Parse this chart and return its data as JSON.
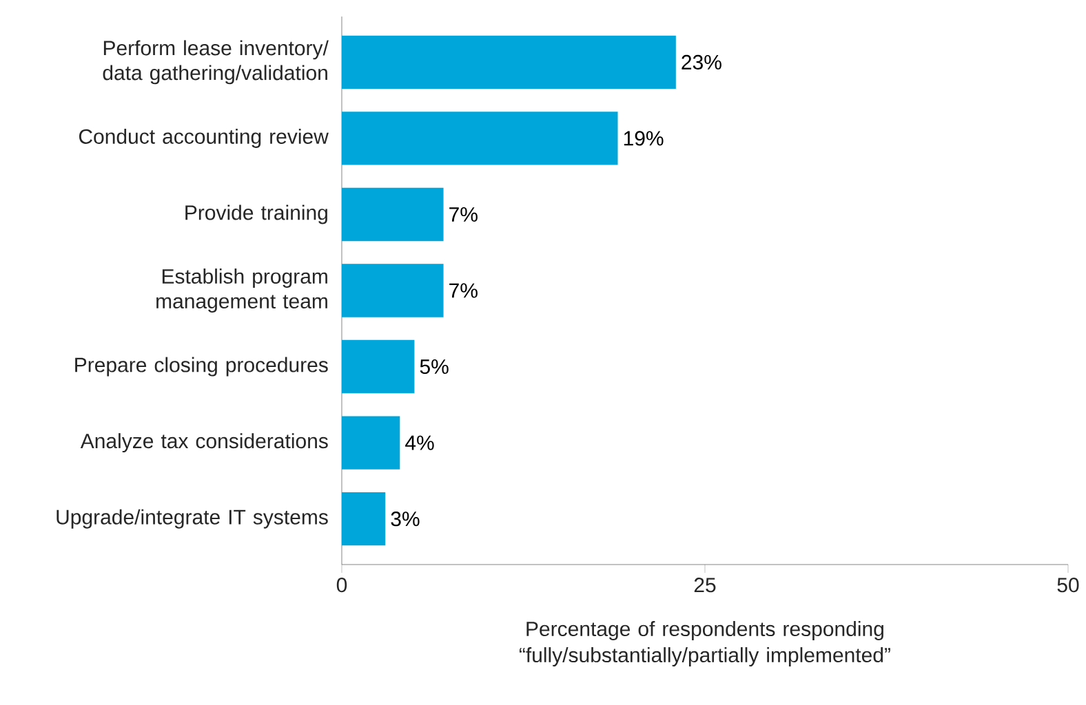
{
  "chart_data": {
    "type": "bar",
    "orientation": "horizontal",
    "categories": [
      "Perform lease inventory/ data gathering/validation",
      "Conduct accounting review",
      "Provide training",
      "Establish program management team",
      "Prepare closing procedures",
      "Analyze tax considerations",
      "Upgrade/integrate IT systems"
    ],
    "values": [
      23,
      19,
      7,
      7,
      5,
      4,
      3
    ],
    "value_labels": [
      "23%",
      "19%",
      "7%",
      "7%",
      "5%",
      "4%",
      "3%"
    ],
    "color": "#00a5d9",
    "xlim": [
      0,
      50
    ],
    "xticks": [
      0,
      25,
      50
    ],
    "xlabel": "Percentage of respondents responding “fully/substantially/partially implemented”"
  }
}
